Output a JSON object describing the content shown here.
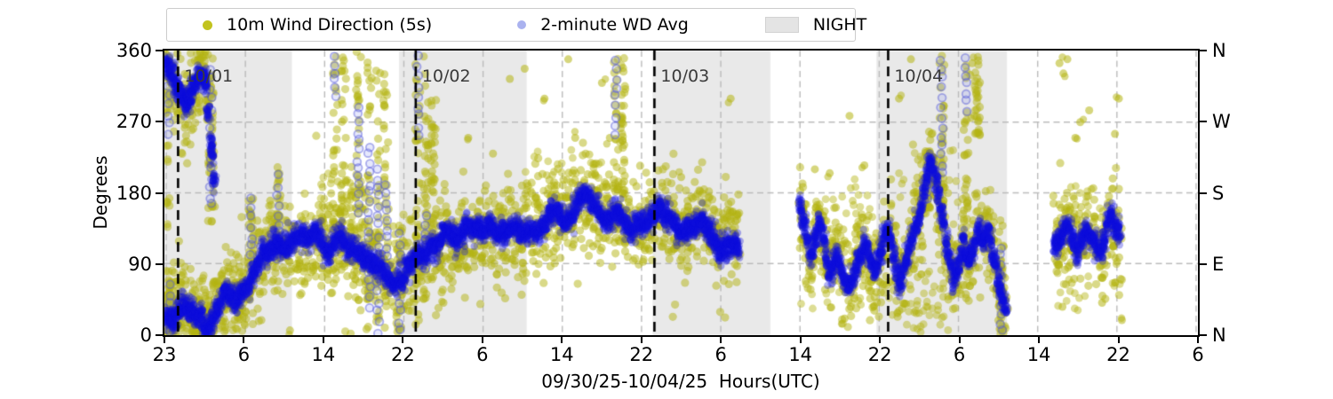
{
  "colors": {
    "raw_yellow": "#bcbd22",
    "avg_blue": "#0d0ddc",
    "avg_blue_light": "#aab2ef",
    "night_gray": "#e9e9e9",
    "grid_gray": "#bbbbbb",
    "annotation_gray": "#3a3a3a"
  },
  "legend": {
    "items": [
      {
        "label": "10m Wind Direction (5s)",
        "marker": "yellow-dot"
      },
      {
        "label": "2-minute WD Avg",
        "marker": "lightblue-dot"
      },
      {
        "label": "NIGHT",
        "marker": "gray-swatch"
      }
    ]
  },
  "chart_data": {
    "type": "scatter",
    "title": "",
    "xlabel": "09/30/25-10/04/25  Hours(UTC)",
    "ylabel": "Degrees",
    "ylim": [
      0,
      360
    ],
    "grid": true,
    "legend_position": "top-left",
    "x_span_hours": 104,
    "xtick_labels": [
      "23",
      "6",
      "14",
      "22",
      "6",
      "14",
      "22",
      "6",
      "14",
      "22",
      "6",
      "14",
      "22",
      "6"
    ],
    "ytick_left": [
      {
        "deg": 360,
        "label": "360"
      },
      {
        "deg": 270,
        "label": "270"
      },
      {
        "deg": 180,
        "label": "180"
      },
      {
        "deg": 90,
        "label": "90"
      },
      {
        "deg": 0,
        "label": "0"
      }
    ],
    "ytick_right": [
      {
        "deg": 360,
        "label": "N"
      },
      {
        "deg": 270,
        "label": "W"
      },
      {
        "deg": 180,
        "label": "S"
      },
      {
        "deg": 90,
        "label": "E"
      },
      {
        "deg": 0,
        "label": "N"
      }
    ],
    "night_bands_h": [
      [
        0,
        12.7
      ],
      [
        23.7,
        36.4
      ],
      [
        49.3,
        61.0
      ],
      [
        71.9,
        84.9
      ]
    ],
    "day_lines": [
      {
        "h": 1.2,
        "label": "10/01"
      },
      {
        "h": 25.2,
        "label": "10/02"
      },
      {
        "h": 49.3,
        "label": "10/03"
      },
      {
        "h": 72.9,
        "label": "10/04"
      }
    ],
    "series": [
      {
        "name": "10m Wind Direction (5s)",
        "type": "raw",
        "spread_sd": 28
      },
      {
        "name": "2-minute WD Avg",
        "type": "avg",
        "spread_sd": 8
      }
    ],
    "avg_segments": [
      [
        [
          0,
          345
        ],
        [
          0.7,
          320
        ],
        [
          1.4,
          300
        ],
        [
          2,
          286
        ],
        [
          2.6,
          300
        ],
        [
          3.4,
          332
        ],
        [
          4,
          328
        ],
        [
          4.6,
          240
        ],
        [
          5,
          185
        ]
      ],
      [
        [
          0,
          20
        ],
        [
          1,
          25
        ],
        [
          2,
          45
        ],
        [
          3,
          25
        ],
        [
          4,
          12
        ],
        [
          5,
          30
        ],
        [
          6,
          55
        ],
        [
          7,
          42
        ],
        [
          8,
          62
        ],
        [
          9,
          90
        ],
        [
          10,
          105
        ],
        [
          11,
          118
        ],
        [
          12,
          112
        ],
        [
          13,
          108
        ],
        [
          14,
          118
        ],
        [
          15,
          125
        ],
        [
          16,
          112
        ],
        [
          17,
          118
        ],
        [
          18,
          125
        ],
        [
          19,
          112
        ],
        [
          20,
          100
        ],
        [
          21,
          92
        ],
        [
          22,
          85
        ],
        [
          23,
          70
        ],
        [
          24,
          78
        ],
        [
          25,
          90
        ],
        [
          26,
          100
        ],
        [
          27,
          112
        ],
        [
          28,
          118
        ],
        [
          29,
          116
        ],
        [
          30,
          124
        ],
        [
          31,
          130
        ],
        [
          32,
          127
        ],
        [
          33,
          131
        ],
        [
          34,
          127
        ],
        [
          35,
          134
        ],
        [
          36,
          129
        ],
        [
          37,
          137
        ],
        [
          38,
          144
        ],
        [
          39,
          150
        ],
        [
          40,
          147
        ],
        [
          41,
          160
        ],
        [
          42,
          175
        ],
        [
          43,
          168
        ],
        [
          44,
          152
        ],
        [
          45,
          154
        ],
        [
          46,
          149
        ],
        [
          47,
          141
        ],
        [
          48,
          137
        ],
        [
          49,
          149
        ],
        [
          50,
          161
        ],
        [
          51,
          149
        ],
        [
          52,
          121
        ],
        [
          53,
          139
        ],
        [
          54,
          157
        ],
        [
          55,
          129
        ],
        [
          56,
          114
        ],
        [
          57,
          129
        ],
        [
          58,
          121
        ]
      ],
      [
        [
          64,
          160
        ],
        [
          64.5,
          130
        ],
        [
          65,
          95
        ],
        [
          65.5,
          120
        ],
        [
          66,
          148
        ],
        [
          66.5,
          115
        ],
        [
          67,
          80
        ],
        [
          67.5,
          100
        ],
        [
          68,
          100
        ],
        [
          68.5,
          70
        ],
        [
          69,
          55
        ],
        [
          69.5,
          80
        ],
        [
          70,
          100
        ],
        [
          70.5,
          120
        ],
        [
          71,
          95
        ],
        [
          71.5,
          70
        ],
        [
          72,
          90
        ],
        [
          72.5,
          110
        ],
        [
          73,
          125
        ],
        [
          73.5,
          95
        ],
        [
          74,
          60
        ],
        [
          74.5,
          85
        ],
        [
          75,
          110
        ],
        [
          75.5,
          130
        ],
        [
          76,
          150
        ],
        [
          76.5,
          185
        ],
        [
          77,
          215
        ],
        [
          77.5,
          200
        ],
        [
          78,
          170
        ],
        [
          78.5,
          140
        ],
        [
          79,
          100
        ],
        [
          79.5,
          70
        ],
        [
          80,
          90
        ],
        [
          80.5,
          120
        ],
        [
          81,
          95
        ],
        [
          81.5,
          110
        ],
        [
          82,
          135
        ],
        [
          82.5,
          120
        ],
        [
          83,
          140
        ],
        [
          83.5,
          110
        ],
        [
          84,
          80
        ],
        [
          84.5,
          40
        ],
        [
          85,
          25
        ]
      ],
      [
        [
          89.7,
          120
        ],
        [
          90,
          115
        ],
        [
          90.5,
          128
        ],
        [
          91,
          135
        ],
        [
          91.5,
          120
        ],
        [
          92,
          108
        ],
        [
          92.5,
          122
        ],
        [
          93,
          138
        ],
        [
          93.5,
          128
        ],
        [
          94,
          112
        ],
        [
          94.5,
          100
        ],
        [
          95,
          125
        ],
        [
          95.5,
          140
        ],
        [
          96,
          128
        ],
        [
          96.5,
          115
        ]
      ]
    ],
    "spikes": [
      {
        "h": 0.25,
        "lo": 0,
        "hi": 360,
        "blo": 250,
        "bhi": 360
      },
      {
        "h": 0.5,
        "lo": 0,
        "hi": 90,
        "blo": 0,
        "bhi": 70
      },
      {
        "h": 4.5,
        "lo": 140,
        "hi": 355,
        "blo": 160,
        "bhi": 345
      },
      {
        "h": 8.6,
        "lo": 55,
        "hi": 185,
        "blo": 60,
        "bhi": 180
      },
      {
        "h": 11.3,
        "lo": 80,
        "hi": 215,
        "blo": 90,
        "bhi": 210
      },
      {
        "h": 17.1,
        "lo": 55,
        "hi": 360,
        "blo": 300,
        "bhi": 360
      },
      {
        "h": 17.9,
        "lo": 75,
        "hi": 360
      },
      {
        "h": 19.4,
        "lo": 0,
        "hi": 360,
        "blo": 150,
        "bhi": 300
      },
      {
        "h": 20.5,
        "lo": 0,
        "hi": 360,
        "blo": 30,
        "bhi": 250
      },
      {
        "h": 21.4,
        "lo": 0,
        "hi": 360,
        "blo": 0,
        "bhi": 220
      },
      {
        "h": 22.2,
        "lo": 0,
        "hi": 360,
        "blo": 60,
        "bhi": 200
      },
      {
        "h": 23.6,
        "lo": 0,
        "hi": 140,
        "blo": 0,
        "bhi": 135
      },
      {
        "h": 25.4,
        "lo": 0,
        "hi": 360,
        "blo": 250,
        "bhi": 360
      },
      {
        "h": 26.2,
        "lo": 40,
        "hi": 360,
        "blo": 80,
        "bhi": 160
      },
      {
        "h": 27.0,
        "lo": 140,
        "hi": 310
      },
      {
        "h": 45.4,
        "lo": 140,
        "hi": 360,
        "blo": 250,
        "bhi": 360
      },
      {
        "h": 46.1,
        "lo": 180,
        "hi": 360
      },
      {
        "h": 76.9,
        "lo": 160,
        "hi": 235,
        "blo": 170,
        "bhi": 230
      },
      {
        "h": 78.3,
        "lo": 140,
        "hi": 360,
        "blo": 200,
        "bhi": 360
      },
      {
        "h": 80.8,
        "lo": 60,
        "hi": 360,
        "blo": 280,
        "bhi": 360
      },
      {
        "h": 81.9,
        "lo": 250,
        "hi": 360
      },
      {
        "h": 84.3,
        "lo": 0,
        "hi": 150,
        "blo": 0,
        "bhi": 120
      }
    ],
    "clouds": [
      [
        0,
        8,
        0,
        80,
        80
      ],
      [
        15.5,
        20.5,
        130,
        205,
        60
      ],
      [
        36,
        44,
        150,
        235,
        50
      ],
      [
        64,
        71.5,
        30,
        200,
        70
      ],
      [
        73,
        79,
        0,
        60,
        30
      ],
      [
        74,
        80,
        20,
        235,
        60
      ],
      [
        90,
        96.5,
        30,
        190,
        60
      ]
    ],
    "outliers": [
      [
        10.5,
        170
      ],
      [
        12.5,
        5
      ],
      [
        24.5,
        30
      ],
      [
        28,
        40
      ],
      [
        30.5,
        250
      ],
      [
        33,
        230
      ],
      [
        34.7,
        325
      ],
      [
        36.2,
        338
      ],
      [
        38.2,
        300
      ],
      [
        40.6,
        350
      ],
      [
        41.3,
        250
      ],
      [
        44,
        320
      ],
      [
        44.8,
        250
      ],
      [
        45.9,
        262
      ],
      [
        52,
        200
      ],
      [
        57,
        300
      ],
      [
        65.5,
        210
      ],
      [
        67,
        205
      ],
      [
        69,
        278
      ],
      [
        70.5,
        215
      ],
      [
        74,
        300
      ],
      [
        75.2,
        350
      ],
      [
        81.2,
        330
      ],
      [
        81.4,
        345
      ],
      [
        81.6,
        278
      ],
      [
        90.2,
        345
      ],
      [
        90.6,
        332
      ],
      [
        91,
        350
      ],
      [
        91.8,
        250
      ],
      [
        92.3,
        270
      ],
      [
        93.2,
        285
      ],
      [
        95.8,
        255
      ],
      [
        96.2,
        300
      ],
      [
        68.5,
        20
      ],
      [
        71.5,
        30
      ],
      [
        90.5,
        35
      ],
      [
        94.5,
        40
      ],
      [
        96.5,
        18
      ]
    ]
  }
}
